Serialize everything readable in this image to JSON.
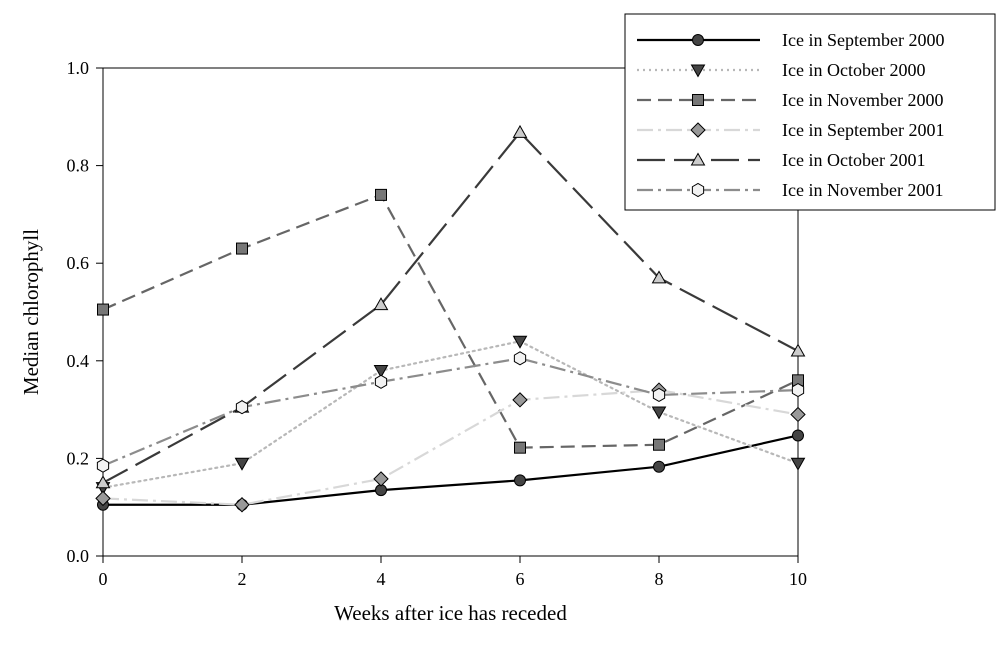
{
  "chart_data": {
    "type": "line",
    "title": "",
    "xlabel": "Weeks after ice has receded",
    "ylabel": "Median chlorophyll",
    "x": [
      0,
      2,
      4,
      6,
      8,
      10
    ],
    "x_ticks": [
      "0",
      "2",
      "4",
      "6",
      "8",
      "10"
    ],
    "y_ticks": [
      "0.0",
      "0.2",
      "0.4",
      "0.6",
      "0.8",
      "1.0"
    ],
    "xlim": [
      0,
      10
    ],
    "ylim": [
      0,
      1.0
    ],
    "grid": false,
    "legend_position": "top-right",
    "series": [
      {
        "name": "Ice in September 2000",
        "values": [
          0.105,
          0.105,
          0.135,
          0.155,
          0.183,
          0.247
        ],
        "marker": "circle",
        "marker_color": "#444444",
        "line_color": "#000000",
        "dash": "solid"
      },
      {
        "name": "Ice in October 2000",
        "values": [
          0.14,
          0.19,
          0.38,
          0.44,
          0.295,
          0.19
        ],
        "marker": "triangle-down",
        "marker_color": "#444444",
        "line_color": "#b8b8b8",
        "dash": "dotted"
      },
      {
        "name": "Ice in November 2000",
        "values": [
          0.505,
          0.63,
          0.74,
          0.222,
          0.228,
          0.36
        ],
        "marker": "square",
        "marker_color": "#777777",
        "line_color": "#666666",
        "dash": "dashed"
      },
      {
        "name": "Ice in September 2001",
        "values": [
          0.118,
          0.105,
          0.158,
          0.32,
          0.34,
          0.29
        ],
        "marker": "diamond",
        "marker_color": "#999999",
        "line_color": "#d8d8d8",
        "dash": "dash-dot"
      },
      {
        "name": "Ice in October 2001",
        "values": [
          0.15,
          0.305,
          0.515,
          0.868,
          0.57,
          0.42
        ],
        "marker": "triangle-up",
        "marker_color": "#cccccc",
        "line_color": "#3a3a3a",
        "dash": "long-dash"
      },
      {
        "name": "Ice in November 2001",
        "values": [
          0.185,
          0.305,
          0.357,
          0.405,
          0.33,
          0.34
        ],
        "marker": "hexagon",
        "marker_color": "#f2f2f2",
        "line_color": "#8c8c8c",
        "dash": "dash-dot"
      }
    ]
  }
}
